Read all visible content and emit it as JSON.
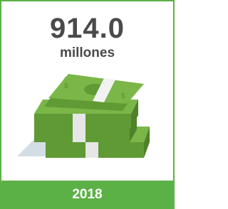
{
  "card": {
    "amount": "914.0",
    "unit": "millones",
    "year": "2018"
  }
}
